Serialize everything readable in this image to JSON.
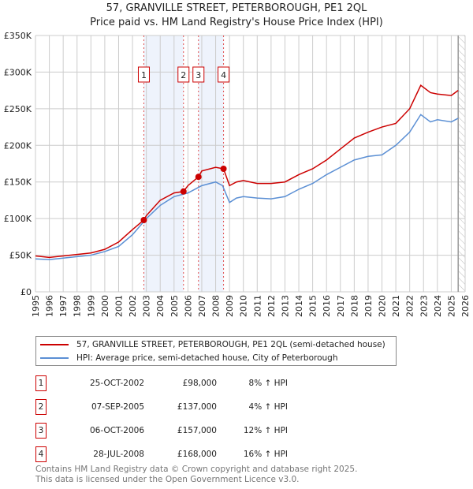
{
  "chart_data": {
    "type": "line",
    "title": "57, GRANVILLE STREET, PETERBOROUGH, PE1 2QL",
    "subtitle": "Price paid vs. HM Land Registry's House Price Index (HPI)",
    "xlim": [
      1995,
      2026
    ],
    "ylim": [
      0,
      350000
    ],
    "y_ticks": [
      {
        "v": 0,
        "label": "£0"
      },
      {
        "v": 50000,
        "label": "£50K"
      },
      {
        "v": 100000,
        "label": "£100K"
      },
      {
        "v": 150000,
        "label": "£150K"
      },
      {
        "v": 200000,
        "label": "£200K"
      },
      {
        "v": 250000,
        "label": "£250K"
      },
      {
        "v": 300000,
        "label": "£300K"
      },
      {
        "v": 350000,
        "label": "£350K"
      }
    ],
    "x_ticks": [
      "1995",
      "1996",
      "1997",
      "1998",
      "1999",
      "2000",
      "2001",
      "2002",
      "2003",
      "2004",
      "2005",
      "2006",
      "2007",
      "2008",
      "2009",
      "2010",
      "2011",
      "2012",
      "2013",
      "2014",
      "2015",
      "2016",
      "2017",
      "2018",
      "2019",
      "2020",
      "2021",
      "2022",
      "2023",
      "2024",
      "2025",
      "2026"
    ],
    "grid": true,
    "series": [
      {
        "name": "57, GRANVILLE STREET, PETERBOROUGH, PE1 2QL (semi-detached house)",
        "color": "#cc0000",
        "x": [
          1995,
          1996,
          1997,
          1998,
          1999,
          2000,
          2001,
          2002,
          2002.82,
          2003,
          2004,
          2005,
          2005.68,
          2006,
          2006.76,
          2007,
          2008,
          2008.57,
          2009,
          2009.5,
          2010,
          2011,
          2012,
          2013,
          2014,
          2015,
          2016,
          2017,
          2018,
          2019,
          2020,
          2021,
          2022,
          2022.8,
          2023.5,
          2024,
          2025,
          2025.5
        ],
        "y": [
          49000,
          47000,
          49000,
          51000,
          53000,
          58000,
          68000,
          85000,
          98000,
          104000,
          125000,
          135000,
          137000,
          145000,
          157000,
          165000,
          170000,
          168000,
          145000,
          150000,
          152000,
          148000,
          148000,
          150000,
          160000,
          168000,
          180000,
          195000,
          210000,
          218000,
          225000,
          230000,
          250000,
          282000,
          272000,
          270000,
          268000,
          275000
        ]
      },
      {
        "name": "HPI: Average price, semi-detached house, City of Peterborough",
        "color": "#5b8fd4",
        "x": [
          1995,
          1996,
          1997,
          1998,
          1999,
          2000,
          2001,
          2002,
          2003,
          2004,
          2005,
          2006,
          2007,
          2008,
          2008.5,
          2009,
          2009.5,
          2010,
          2011,
          2012,
          2013,
          2014,
          2015,
          2016,
          2017,
          2018,
          2019,
          2020,
          2021,
          2022,
          2022.8,
          2023.5,
          2024,
          2025,
          2025.5
        ],
        "y": [
          45000,
          44000,
          46000,
          48000,
          50000,
          55000,
          62000,
          78000,
          100000,
          118000,
          130000,
          135000,
          145000,
          150000,
          145000,
          122000,
          128000,
          130000,
          128000,
          127000,
          130000,
          140000,
          148000,
          160000,
          170000,
          180000,
          185000,
          187000,
          200000,
          218000,
          242000,
          232000,
          235000,
          232000,
          237000
        ]
      }
    ],
    "sales": [
      {
        "id": "1",
        "x": 2002.82,
        "price": 98000,
        "date": "25-OCT-2002",
        "price_label": "£98,000",
        "hpi": "8% ↑ HPI"
      },
      {
        "id": "2",
        "x": 2005.68,
        "price": 137000,
        "date": "07-SEP-2005",
        "price_label": "£137,000",
        "hpi": "4% ↑ HPI"
      },
      {
        "id": "3",
        "x": 2006.76,
        "price": 157000,
        "date": "06-OCT-2006",
        "price_label": "£157,000",
        "hpi": "12% ↑ HPI"
      },
      {
        "id": "4",
        "x": 2008.57,
        "price": 168000,
        "date": "28-JUL-2008",
        "price_label": "£168,000",
        "hpi": "16% ↑ HPI"
      }
    ],
    "shaded_ranges": [
      [
        2002.82,
        2005.68
      ],
      [
        2006.76,
        2008.57
      ]
    ],
    "forecast_start": 2025.5,
    "legend_position": "bottom"
  },
  "footer": {
    "line1": "Contains HM Land Registry data © Crown copyright and database right 2025.",
    "line2": "This data is licensed under the Open Government Licence v3.0."
  }
}
